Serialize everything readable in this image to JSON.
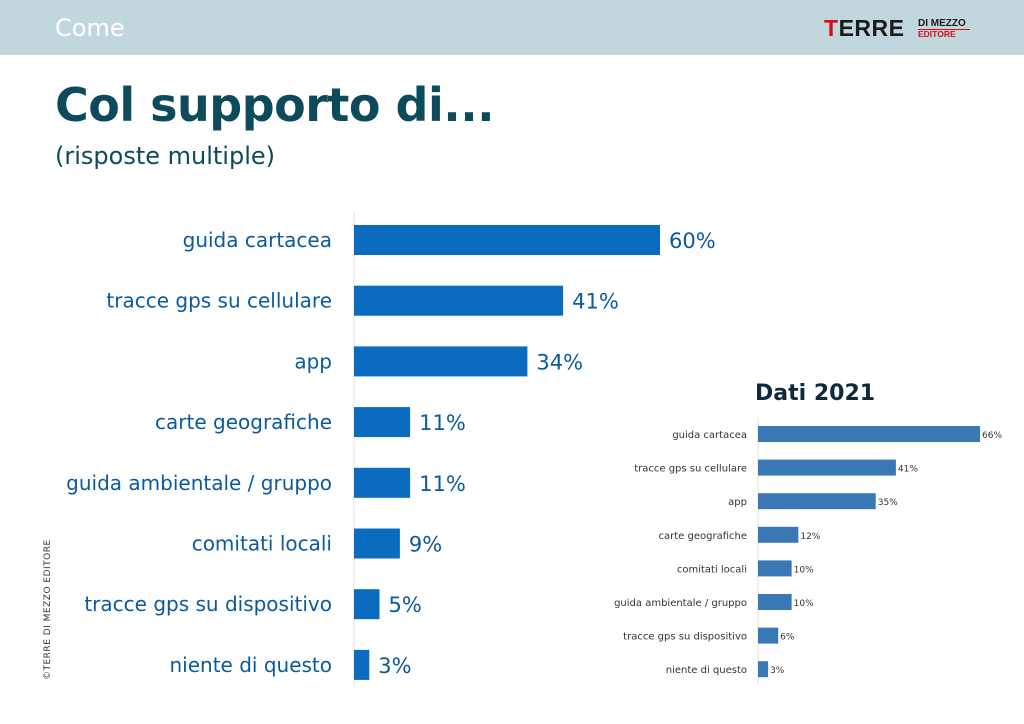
{
  "header": {
    "section": "Come",
    "logo_main_first": "T",
    "logo_main_rest": "ERRE",
    "logo_small_top": "DI MEZZO",
    "logo_small_bottom": "EDITORE"
  },
  "title": "Col supporto di...",
  "subtitle": "(risposte multiple)",
  "copyright": "©TERRE DI MEZZO EDITORE",
  "colors": {
    "bar": "#0b6cbf",
    "inset_bar": "#3a78b5",
    "label": "#0b5aa0",
    "title": "#0d4a5c",
    "header_bg": "#c0d8dd"
  },
  "chart_data": [
    {
      "type": "bar",
      "orientation": "horizontal",
      "categories": [
        "guida cartacea",
        "tracce gps su cellulare",
        "app",
        "carte geografiche",
        "guida ambientale / gruppo",
        "comitati locali",
        "tracce gps su dispositivo",
        "niente di questo"
      ],
      "values": [
        60,
        41,
        34,
        11,
        11,
        9,
        5,
        3
      ],
      "value_labels": [
        "60%",
        "41%",
        "34%",
        "11%",
        "11%",
        "9%",
        "5%",
        "3%"
      ],
      "unit": "%",
      "xlim": [
        0,
        100
      ]
    },
    {
      "type": "bar",
      "orientation": "horizontal",
      "title": "Dati 2021",
      "categories": [
        "guida cartacea",
        "tracce gps su cellulare",
        "app",
        "carte geografiche",
        "comitati locali",
        "guida ambientale / gruppo",
        "tracce gps su dispositivo",
        "niente di questo"
      ],
      "values": [
        66,
        41,
        35,
        12,
        10,
        10,
        6,
        3
      ],
      "value_labels": [
        "66%",
        "41%",
        "35%",
        "12%",
        "10%",
        "10%",
        "6%",
        "3%"
      ],
      "unit": "%",
      "xlim": [
        0,
        66
      ]
    }
  ]
}
